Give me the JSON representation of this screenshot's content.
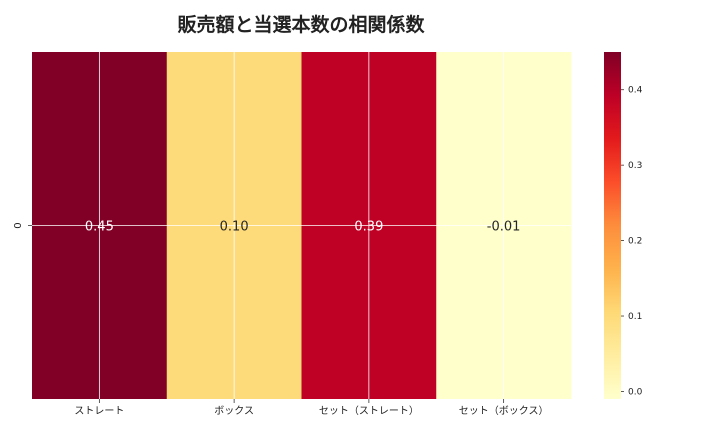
{
  "chart_data": {
    "type": "heatmap",
    "title": "販売額と当選本数の相関係数",
    "rows": [
      "0"
    ],
    "columns": [
      "ストレート",
      "ボックス",
      "セット（ストレート）",
      "セット（ボックス）"
    ],
    "values": [
      [
        0.45,
        0.1,
        0.39,
        -0.01
      ]
    ],
    "value_labels": [
      [
        "0.45",
        "0.10",
        "0.39",
        "-0.01"
      ]
    ],
    "colormap": "YlOrRd",
    "vmin": -0.01,
    "vmax": 0.45,
    "colorbar": {
      "ticks": [
        0.0,
        0.1,
        0.2,
        0.3,
        0.4
      ],
      "tick_labels": [
        "0.0",
        "0.1",
        "0.2",
        "0.3",
        "0.4"
      ]
    },
    "grid": true,
    "colors": {
      "low": "#ffffcc",
      "high": "#800026"
    }
  }
}
